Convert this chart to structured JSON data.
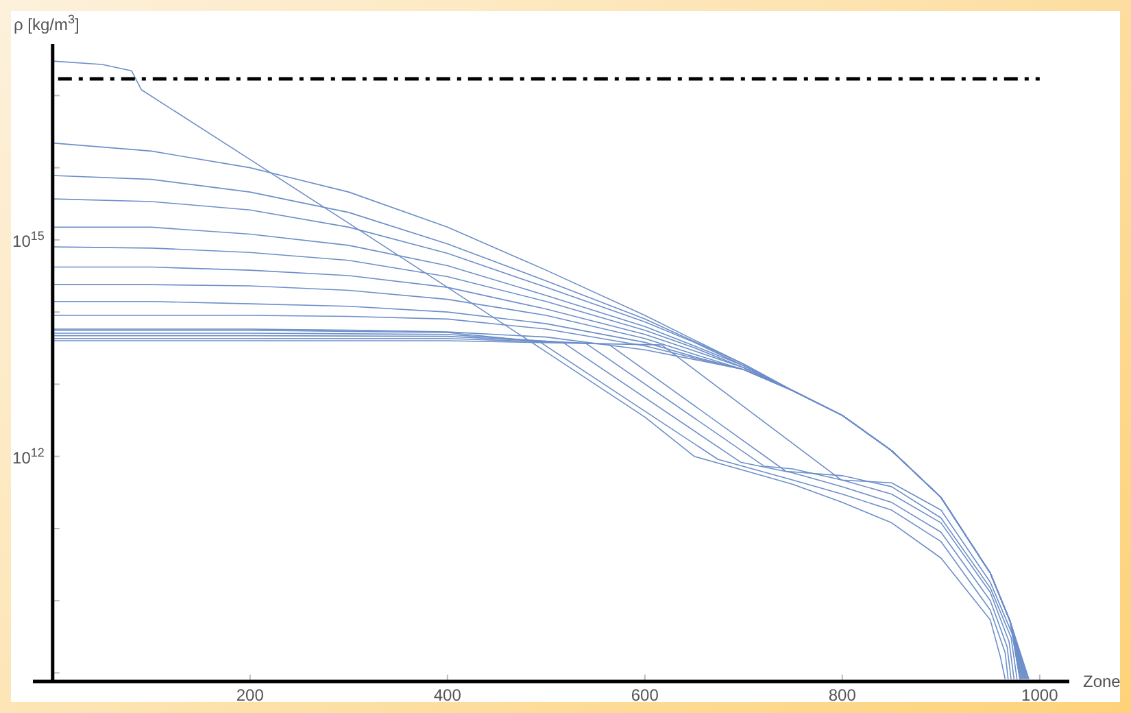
{
  "chart_data": {
    "type": "line",
    "xlabel": "Zone",
    "ylabel": "ρ [kg/m$^{3}$]",
    "log": "y",
    "grid": false,
    "line_style": "solid",
    "marker": "none",
    "xlim": [
      -20,
      1030
    ],
    "xticks": [
      200,
      400,
      600,
      800,
      1000
    ],
    "ylim": [
      760000000.0,
      5.2e+17
    ],
    "yticks": [
      {
        "value": 1000000000.0,
        "label": null
      },
      {
        "value": 10000000000.0,
        "label": null
      },
      {
        "value": 100000000000.0,
        "label": null
      },
      {
        "value": 1000000000000.0,
        "label": "10$^{12}$"
      },
      {
        "value": 10000000000000.0,
        "label": null
      },
      {
        "value": 100000000000000.0,
        "label": null
      },
      {
        "value": 1000000000000000.0,
        "label": "10$^{15}$"
      },
      {
        "value": 1e+16,
        "label": null
      },
      {
        "value": 1e+17,
        "label": null
      }
    ],
    "ref_lines": [
      {
        "axis": "y",
        "value": 1.7e+17,
        "color": "#000000",
        "line_style": "dashed"
      }
    ],
    "series": [
      {
        "color": "#6d8fc9",
        "x": [
          0,
          100,
          200,
          300,
          400,
          500,
          600,
          650,
          700,
          750,
          800,
          850,
          900,
          950,
          970,
          989
        ],
        "values": [
          58000000000000.0,
          58000000000000.0,
          58000000000000.0,
          56000000000000.0,
          53000000000000.0,
          45000000000000.0,
          30000000000000.0,
          22000000000000.0,
          16000000000000.0,
          8100000000000.0,
          3700000000000.0,
          1200000000000.0,
          270000000000.0,
          24000000000.0,
          5200000000.0,
          820000000.0
        ]
      },
      {
        "color": "#6d8fc9",
        "x": [
          0,
          100,
          200,
          300,
          400,
          500,
          600,
          650,
          700,
          750,
          800,
          850,
          900,
          950,
          970,
          988
        ],
        "values": [
          90000000000000.0,
          90000000000000.0,
          90000000000000.0,
          87000000000000.0,
          80000000000000.0,
          58000000000000.0,
          34000000000000.0,
          23000000000000.0,
          16000000000000.0,
          8100000000000.0,
          3700000000000.0,
          1200000000000.0,
          270000000000.0,
          24000000000.0,
          5200000000.0,
          820000000.0
        ]
      },
      {
        "color": "#6d8fc9",
        "x": [
          0,
          100,
          200,
          300,
          400,
          500,
          600,
          650,
          700,
          750,
          800,
          850,
          900,
          950,
          970,
          987
        ],
        "values": [
          140000000000000.0,
          140000000000000.0,
          130000000000000.0,
          120000000000000.0,
          100000000000000.0,
          69000000000000.0,
          38000000000000.0,
          24000000000000.0,
          16000000000000.0,
          8100000000000.0,
          3700000000000.0,
          1200000000000.0,
          270000000000.0,
          24000000000.0,
          5200000000.0,
          820000000.0
        ]
      },
      {
        "color": "#6d8fc9",
        "x": [
          0,
          100,
          200,
          300,
          400,
          500,
          600,
          650,
          700,
          750,
          800,
          850,
          900,
          950,
          970,
          986
        ],
        "values": [
          240000000000000.0,
          240000000000000.0,
          230000000000000.0,
          200000000000000.0,
          150000000000000.0,
          90000000000000.0,
          43000000000000.0,
          26000000000000.0,
          16000000000000.0,
          8100000000000.0,
          3700000000000.0,
          1200000000000.0,
          270000000000.0,
          24000000000.0,
          5200000000.0,
          820000000.0
        ]
      },
      {
        "color": "#6d8fc9",
        "x": [
          0,
          100,
          200,
          300,
          400,
          500,
          600,
          650,
          700,
          750,
          800,
          850,
          900,
          950,
          970,
          985
        ],
        "values": [
          420000000000000.0,
          420000000000000.0,
          380000000000000.0,
          320000000000000.0,
          220000000000000.0,
          110000000000000.0,
          49000000000000.0,
          29000000000000.0,
          17000000000000.0,
          8100000000000.0,
          3700000000000.0,
          1200000000000.0,
          270000000000.0,
          24000000000.0,
          5200000000.0,
          820000000.0
        ]
      },
      {
        "color": "#6d8fc9",
        "x": [
          0,
          100,
          200,
          300,
          400,
          500,
          600,
          650,
          700,
          750,
          800,
          850,
          900,
          950,
          970,
          984
        ],
        "values": [
          800000000000000.0,
          770000000000000.0,
          670000000000000.0,
          520000000000000.0,
          310000000000000.0,
          140000000000000.0,
          56000000000000.0,
          32000000000000.0,
          17000000000000.0,
          8100000000000.0,
          3700000000000.0,
          1200000000000.0,
          270000000000.0,
          24000000000.0,
          5200000000.0,
          820000000.0
        ]
      },
      {
        "color": "#6d8fc9",
        "x": [
          0,
          100,
          200,
          300,
          400,
          500,
          600,
          650,
          700,
          750,
          800,
          850,
          900,
          950,
          970,
          983
        ],
        "values": [
          1500000000000000.0,
          1500000000000000.0,
          1200000000000000.0,
          840000000000000.0,
          440000000000000.0,
          170000000000000.0,
          63000000000000.0,
          34000000000000.0,
          18000000000000.0,
          8100000000000.0,
          3700000000000.0,
          1200000000000.0,
          270000000000.0,
          24000000000.0,
          5200000000.0,
          820000000.0
        ]
      },
      {
        "color": "#6d8fc9",
        "x": [
          0,
          100,
          200,
          300,
          400,
          500,
          600,
          650,
          700,
          750,
          800,
          850,
          900,
          950,
          970,
          982
        ],
        "values": [
          3700000000000000.0,
          3400000000000000.0,
          2600000000000000.0,
          1500000000000000.0,
          650000000000000.0,
          220000000000000.0,
          73000000000000.0,
          38000000000000.0,
          18000000000000.0,
          8100000000000.0,
          3700000000000.0,
          1200000000000.0,
          270000000000.0,
          24000000000.0,
          5200000000.0,
          820000000.0
        ]
      },
      {
        "color": "#6d8fc9",
        "x": [
          0,
          100,
          200,
          300,
          400,
          500,
          600,
          650,
          700,
          750,
          800,
          850,
          900,
          950,
          970,
          981
        ],
        "values": [
          7800000000000000.0,
          6900000000000000.0,
          4600000000000000.0,
          2400000000000000.0,
          880000000000000.0,
          270000000000000.0,
          80000000000000.0,
          39000000000000.0,
          19000000000000.0,
          8100000000000.0,
          3700000000000.0,
          1200000000000.0,
          270000000000.0,
          24000000000.0,
          5200000000.0,
          820000000.0
        ]
      },
      {
        "color": "#6d8fc9",
        "x": [
          0,
          100,
          200,
          300,
          400,
          500,
          600,
          650,
          700,
          750,
          800,
          850,
          900,
          950,
          970,
          980
        ],
        "values": [
          2.2e+16,
          1.7e+16,
          1e+16,
          4600000000000000.0,
          1500000000000000.0,
          380000000000000.0,
          90000000000000.0,
          41000000000000.0,
          19000000000000.0,
          8100000000000.0,
          3700000000000.0,
          1200000000000.0,
          270000000000.0,
          24000000000.0,
          5200000000.0,
          820000000.0
        ]
      },
      {
        "color": "#6d8fc9",
        "x": [
          0,
          50,
          80,
          90,
          200,
          300,
          400,
          500,
          600,
          650,
          700,
          750,
          800,
          850,
          900,
          950,
          960,
          965
        ],
        "values": [
          3e+17,
          2.7e+17,
          2.2e+17,
          1.2e+17,
          1.3e+16,
          1700000000000000.0,
          220000000000000.0,
          28000000000000.0,
          3500000000000.0,
          1000000000000.0,
          640000000000.0,
          410000000000.0,
          230000000000.0,
          120000000000.0,
          39000000000.0,
          5400000000.0,
          1700000000.0,
          820000000.0
        ]
      },
      {
        "color": "#6d8fc9",
        "x": [
          0,
          200,
          400,
          493,
          674,
          750,
          800,
          850,
          900,
          950,
          965,
          968
        ],
        "values": [
          56000000000000.0,
          56000000000000.0,
          52000000000000.0,
          39000000000000.0,
          910000000000.0,
          470000000000.0,
          300000000000.0,
          180000000000.0,
          66000000000.0,
          7400000000.0,
          1900000000.0,
          820000000.0
        ]
      },
      {
        "color": "#6d8fc9",
        "x": [
          0,
          200,
          400,
          517,
          697,
          750,
          800,
          850,
          900,
          950,
          967,
          971
        ],
        "values": [
          51000000000000.0,
          51000000000000.0,
          49000000000000.0,
          38000000000000.0,
          830000000000.0,
          590000000000.0,
          380000000000.0,
          230000000000.0,
          89000000000.0,
          10000000000.0,
          2300000000.0,
          820000000.0
        ]
      },
      {
        "color": "#6d8fc9",
        "x": [
          0,
          200,
          400,
          540,
          721,
          750,
          800,
          850,
          900,
          950,
          969,
          974
        ],
        "values": [
          47000000000000.0,
          47000000000000.0,
          46000000000000.0,
          37000000000000.0,
          730000000000.0,
          670000000000.0,
          470000000000.0,
          300000000000.0,
          120000000000.0,
          13000000000.0,
          2700000000.0,
          820000000.0
        ]
      },
      {
        "color": "#6d8fc9",
        "x": [
          0,
          200,
          400,
          563,
          743,
          800,
          850,
          900,
          950,
          971,
          977
        ],
        "values": [
          43000000000000.0,
          43000000000000.0,
          43000000000000.0,
          36000000000000.0,
          620000000000.0,
          540000000000.0,
          380000000000.0,
          140000000000.0,
          15000000000.0,
          3100000000.0,
          820000000.0
        ]
      },
      {
        "color": "#6d8fc9",
        "x": [
          0,
          200,
          400,
          617,
          799,
          850,
          900,
          950,
          972,
          980
        ],
        "values": [
          40000000000000.0,
          40000000000000.0,
          40000000000000.0,
          35000000000000.0,
          470000000000.0,
          430000000000.0,
          180000000000.0,
          18000000000.0,
          3500000000.0,
          820000000.0
        ]
      }
    ]
  }
}
